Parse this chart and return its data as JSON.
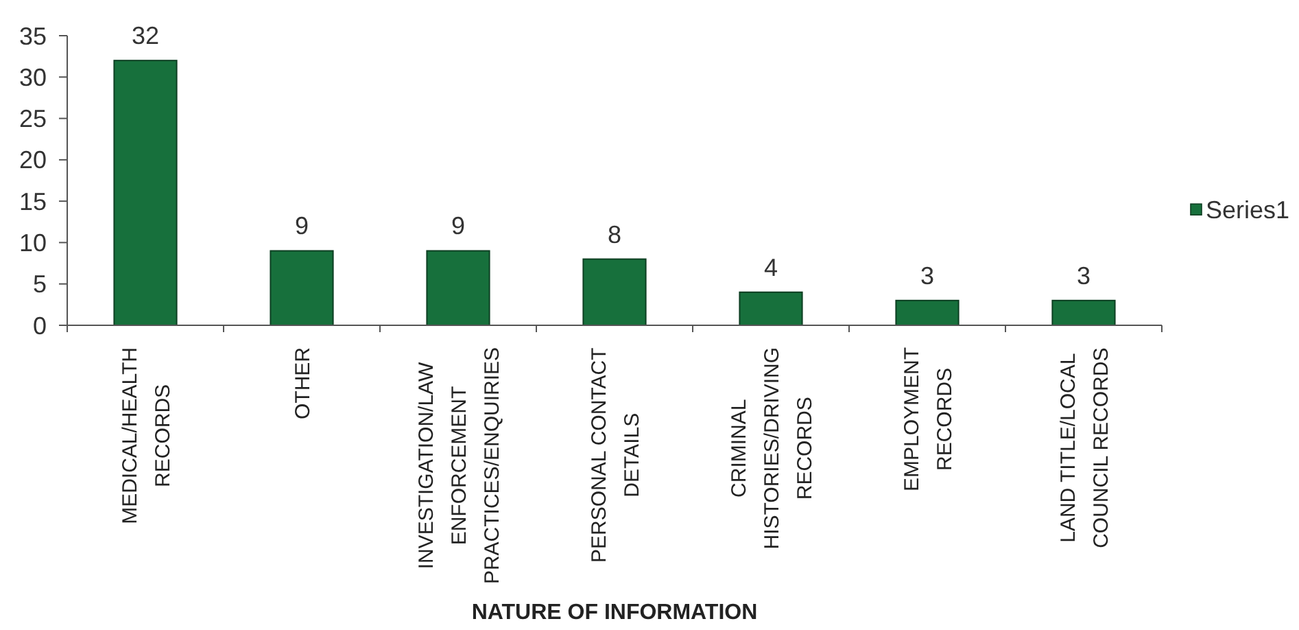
{
  "chart_data": {
    "type": "bar",
    "xlabel": "NATURE OF INFORMATION",
    "categories": [
      "MEDICAL/HEALTH RECORDS",
      "OTHER",
      "INVESTIGATION/LAW ENFORCEMENT PRACTICES/ENQUIRIES",
      "PERSONAL CONTACT DETAILS",
      "CRIMINAL HISTORIES/DRIVING RECORDS",
      "EMPLOYMENT RECORDS",
      "LAND TITLE/LOCAL COUNCIL RECORDS"
    ],
    "series": [
      {
        "name": "Series1",
        "color": "#17703c",
        "values": [
          32,
          9,
          9,
          8,
          4,
          3,
          3
        ]
      }
    ],
    "ylim": [
      0,
      35
    ],
    "yticks": [
      0,
      5,
      10,
      15,
      20,
      25,
      30,
      35
    ],
    "data_labels": true,
    "legend": "right"
  }
}
